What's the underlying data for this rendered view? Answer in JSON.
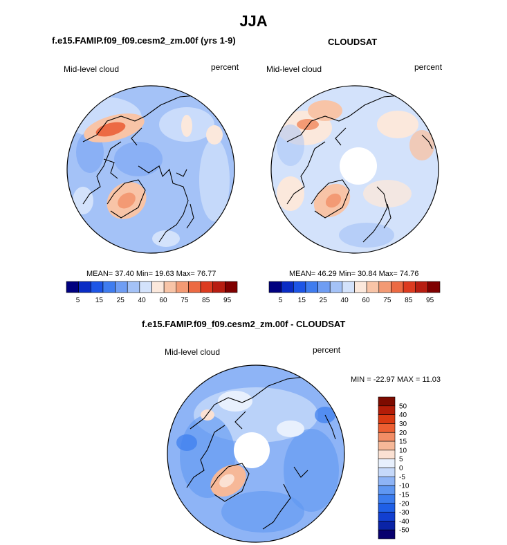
{
  "figure": {
    "title": "JJA",
    "colors": {
      "abs_scale": [
        "#00007f",
        "#0a2cc4",
        "#1d55e6",
        "#3f7cef",
        "#6f9df3",
        "#a4c2f7",
        "#d3e2fb",
        "#fbe8dc",
        "#f8c4a7",
        "#f39a74",
        "#ec6a43",
        "#dc3b20",
        "#b71d11",
        "#7f0000"
      ],
      "diff_scale": [
        "#08006e",
        "#0a23a6",
        "#123fd0",
        "#1f5fe6",
        "#3b7cee",
        "#5f97f2",
        "#8eb4f6",
        "#c6d9fa",
        "#e8f0fd",
        "#fbe1d3",
        "#f6b898",
        "#f28d65",
        "#ec5f32",
        "#d93a12",
        "#b31d08",
        "#7d0b00"
      ],
      "map_background": "#d3e2fb"
    }
  },
  "panel1": {
    "title": "f.e15.FAMIP.f09_f09.cesm2_zm.00f (yrs 1-9)",
    "left_label": "Mid-level cloud",
    "right_label": "percent",
    "stats": "MEAN=  37.40   Min=  19.63   Max=  76.77",
    "mean": 37.4,
    "min": 19.63,
    "max": 76.77
  },
  "panel2": {
    "title": "CLOUDSAT",
    "left_label": "Mid-level cloud",
    "right_label": "percent",
    "stats": "MEAN=  46.29   Min=  30.84   Max=  74.76",
    "mean": 46.29,
    "min": 30.84,
    "max": 74.76
  },
  "panel3": {
    "title": "f.e15.FAMIP.f09_f09.cesm2_zm.00f - CLOUDSAT",
    "left_label": "Mid-level cloud",
    "right_label": "percent",
    "stats": "MIN = -22.97 MAX =  11.03",
    "min": -22.97,
    "max": 11.03
  },
  "chart_data": [
    {
      "type": "heatmap",
      "projection": "polar-stereographic north",
      "title": "f.e15.FAMIP.f09_f09.cesm2_zm.00f (yrs 1-9)",
      "variable": "Mid-level cloud",
      "units": "percent",
      "mean": 37.4,
      "min": 19.63,
      "max": 76.77,
      "colorbar_ticks": [
        "5",
        "15",
        "25",
        "40",
        "60",
        "75",
        "85",
        "95"
      ]
    },
    {
      "type": "heatmap",
      "projection": "polar-stereographic north",
      "title": "CLOUDSAT",
      "variable": "Mid-level cloud",
      "units": "percent",
      "mean": 46.29,
      "min": 30.84,
      "max": 74.76,
      "colorbar_ticks": [
        "5",
        "15",
        "25",
        "40",
        "60",
        "75",
        "85",
        "95"
      ]
    },
    {
      "type": "heatmap",
      "projection": "polar-stereographic north",
      "title": "f.e15.FAMIP.f09_f09.cesm2_zm.00f - CLOUDSAT",
      "variable": "Mid-level cloud",
      "units": "percent",
      "min": -22.97,
      "max": 11.03,
      "colorbar_ticks": [
        "50",
        "40",
        "30",
        "20",
        "15",
        "10",
        "5",
        "0",
        "-5",
        "-10",
        "-15",
        "-20",
        "-30",
        "-40",
        "-50"
      ]
    }
  ]
}
